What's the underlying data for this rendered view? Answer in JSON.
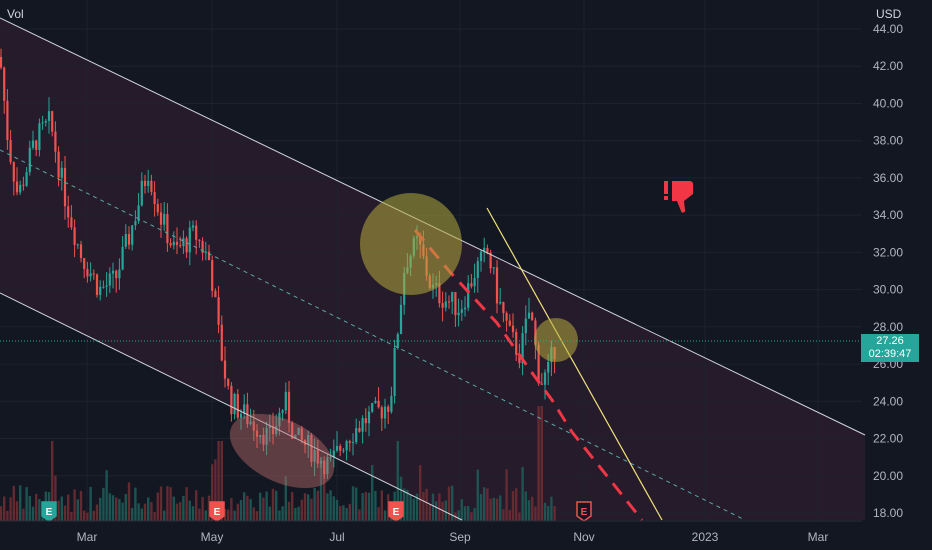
{
  "chart_data": {
    "type": "candlestick",
    "volume_label": "Vol",
    "currency_label": "USD",
    "y_ticks": [
      "44.00",
      "42.00",
      "40.00",
      "38.00",
      "36.00",
      "34.00",
      "32.00",
      "30.00",
      "28.00",
      "26.00",
      "24.00",
      "22.00",
      "20.00",
      "18.00"
    ],
    "ylim": [
      18,
      44
    ],
    "x_ticks": [
      "Mar",
      "May",
      "Jul",
      "Sep",
      "Nov",
      "2023",
      "Mar"
    ],
    "last_price": "27.26",
    "countdown": "02:39:47",
    "grid": true,
    "event_marker_label": "E",
    "annotation_icon": "thumbs-down-icon",
    "colors": {
      "up": "#26a69a",
      "down": "#ef5350",
      "channel_line": "#d1d4dc",
      "midline": "#5aa6a8",
      "trendline": "#f0e27a",
      "dashed_projection": "#f23645",
      "highlight": "#b5a93c",
      "background": "#131722",
      "channel_fill": "#2a1c2b"
    }
  }
}
